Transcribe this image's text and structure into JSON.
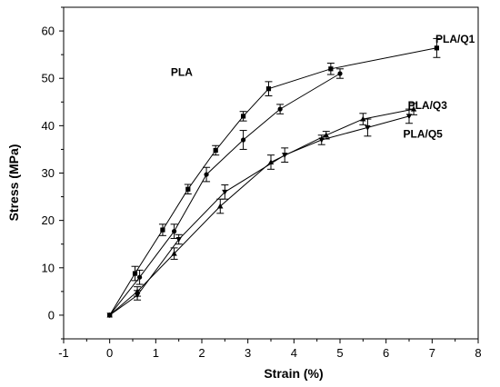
{
  "chart_data": {
    "type": "line",
    "xlabel": "Strain (%)",
    "ylabel": "Stress (MPa)",
    "xlim": [
      -1,
      8
    ],
    "ylim": [
      -5,
      65
    ],
    "xticks": [
      -1,
      0,
      1,
      2,
      3,
      4,
      5,
      6,
      7,
      8
    ],
    "yticks": [
      0,
      10,
      20,
      30,
      40,
      50,
      60
    ],
    "grid": false,
    "series": [
      {
        "name": "PLA",
        "marker": "circle",
        "x": [
          0,
          0.65,
          1.4,
          2.1,
          2.9,
          3.7,
          5.0
        ],
        "y": [
          0,
          8,
          17.7,
          29.7,
          37,
          43.5,
          51
        ],
        "err": [
          0,
          1.5,
          1.5,
          1.5,
          2,
          1,
          1
        ]
      },
      {
        "name": "PLA/Q1",
        "marker": "square",
        "x": [
          0,
          0.55,
          1.15,
          1.7,
          2.3,
          2.9,
          3.45,
          4.8,
          7.1
        ],
        "y": [
          0,
          8.8,
          18,
          26.6,
          34.8,
          42,
          47.8,
          52,
          56.4
        ],
        "err": [
          0,
          1.5,
          1.2,
          1,
          1,
          1,
          1.5,
          1.2,
          2
        ]
      },
      {
        "name": "PLA/Q3",
        "marker": "triangle-up",
        "x": [
          0,
          0.6,
          1.4,
          2.4,
          3.5,
          4.7,
          5.5,
          6.6
        ],
        "y": [
          0,
          5,
          13,
          23,
          32.3,
          38,
          41.4,
          43.5
        ],
        "err": [
          0,
          1,
          1.2,
          1.5,
          1.5,
          0.8,
          1.2,
          1.2
        ]
      },
      {
        "name": "PLA/Q5",
        "marker": "triangle-down",
        "x": [
          0,
          0.6,
          1.5,
          2.5,
          3.8,
          4.6,
          5.6,
          6.5
        ],
        "y": [
          0,
          4.2,
          16,
          26,
          33.8,
          37,
          39.6,
          42
        ],
        "err": [
          0,
          1,
          1,
          1.5,
          1.5,
          1,
          1.8,
          1.5
        ]
      }
    ],
    "annotations": [
      {
        "text": "PLA",
        "x": 1.8,
        "y": 50.5
      },
      {
        "text": "PLA/Q1",
        "x": 7.5,
        "y": 57.5
      },
      {
        "text": "PLA/Q3",
        "x": 6.9,
        "y": 43.5
      },
      {
        "text": "PLA/Q5",
        "x": 6.8,
        "y": 37.5
      }
    ]
  }
}
